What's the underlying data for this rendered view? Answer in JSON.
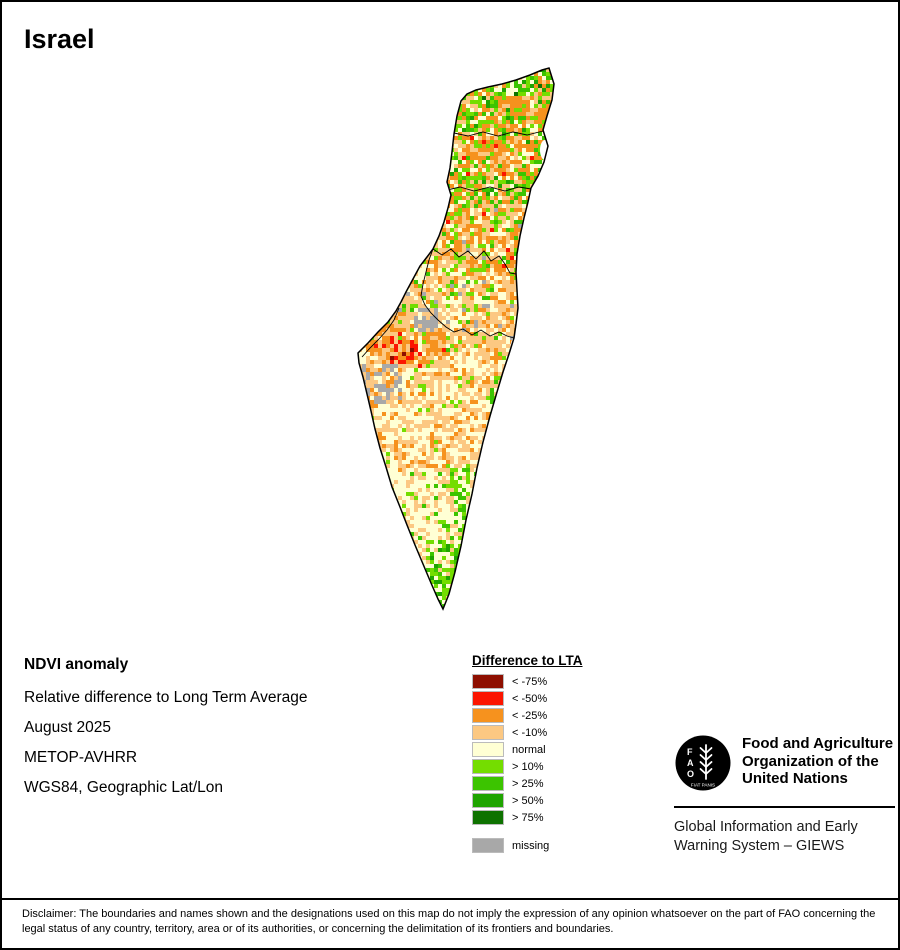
{
  "title": "Israel",
  "info": {
    "heading": "NDVI anomaly",
    "line1": "Relative difference to Long Term Average",
    "line2": "August 2025",
    "line3": "METOP-AVHRR",
    "line4": "WGS84, Geographic Lat/Lon"
  },
  "legend": {
    "title": "Difference to LTA",
    "entries": [
      {
        "label": "< -75%",
        "color": "#8e0f00"
      },
      {
        "label": "< -50%",
        "color": "#fb1500"
      },
      {
        "label": "< -25%",
        "color": "#f6921e"
      },
      {
        "label": "< -10%",
        "color": "#fcc882"
      },
      {
        "label": "normal",
        "color": "#ffffd4"
      },
      {
        "label": "> 10%",
        "color": "#74dd00"
      },
      {
        "label": "> 25%",
        "color": "#3cc400"
      },
      {
        "label": "> 50%",
        "color": "#1fa400"
      },
      {
        "label": "> 75%",
        "color": "#0e7200"
      }
    ],
    "missing": {
      "label": "missing",
      "color": "#a8a8a8"
    }
  },
  "fao": {
    "logo_letters": "FAO",
    "logo_motto": "FIAT PANIS",
    "org_lines": [
      "Food and Agriculture",
      "Organization of the",
      "United Nations"
    ],
    "giews_lines": [
      "Global Information and Early",
      "Warning System – GIEWS"
    ]
  },
  "disclaimer": "Disclaimer: The boundaries and names shown and the designations used on this map do not imply the expression of any opinion whatsoever on the part of FAO concerning the legal status of any country, territory, area or of its authorities, or concerning the delimitation of its frontiers and boundaries."
}
